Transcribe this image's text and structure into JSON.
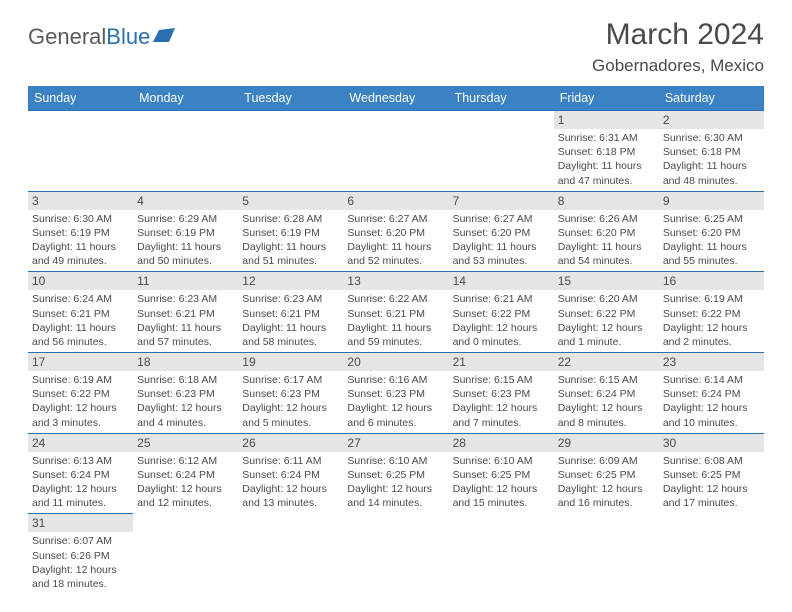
{
  "logo": {
    "text1": "General",
    "text2": "Blue"
  },
  "title": "March 2024",
  "location": "Gobernadores, Mexico",
  "colors": {
    "header_bg": "#3b82c4",
    "header_fg": "#ffffff",
    "daynum_bg": "#e5e5e5",
    "rule": "#2a6fb0",
    "text": "#4a4a4a",
    "brand_blue": "#2a6fb0"
  },
  "weekdays": [
    "Sunday",
    "Monday",
    "Tuesday",
    "Wednesday",
    "Thursday",
    "Friday",
    "Saturday"
  ],
  "grid": [
    [
      {
        "n": "",
        "t": ""
      },
      {
        "n": "",
        "t": ""
      },
      {
        "n": "",
        "t": ""
      },
      {
        "n": "",
        "t": ""
      },
      {
        "n": "",
        "t": ""
      },
      {
        "n": "1",
        "t": "Sunrise: 6:31 AM\nSunset: 6:18 PM\nDaylight: 11 hours and 47 minutes."
      },
      {
        "n": "2",
        "t": "Sunrise: 6:30 AM\nSunset: 6:18 PM\nDaylight: 11 hours and 48 minutes."
      }
    ],
    [
      {
        "n": "3",
        "t": "Sunrise: 6:30 AM\nSunset: 6:19 PM\nDaylight: 11 hours and 49 minutes."
      },
      {
        "n": "4",
        "t": "Sunrise: 6:29 AM\nSunset: 6:19 PM\nDaylight: 11 hours and 50 minutes."
      },
      {
        "n": "5",
        "t": "Sunrise: 6:28 AM\nSunset: 6:19 PM\nDaylight: 11 hours and 51 minutes."
      },
      {
        "n": "6",
        "t": "Sunrise: 6:27 AM\nSunset: 6:20 PM\nDaylight: 11 hours and 52 minutes."
      },
      {
        "n": "7",
        "t": "Sunrise: 6:27 AM\nSunset: 6:20 PM\nDaylight: 11 hours and 53 minutes."
      },
      {
        "n": "8",
        "t": "Sunrise: 6:26 AM\nSunset: 6:20 PM\nDaylight: 11 hours and 54 minutes."
      },
      {
        "n": "9",
        "t": "Sunrise: 6:25 AM\nSunset: 6:20 PM\nDaylight: 11 hours and 55 minutes."
      }
    ],
    [
      {
        "n": "10",
        "t": "Sunrise: 6:24 AM\nSunset: 6:21 PM\nDaylight: 11 hours and 56 minutes."
      },
      {
        "n": "11",
        "t": "Sunrise: 6:23 AM\nSunset: 6:21 PM\nDaylight: 11 hours and 57 minutes."
      },
      {
        "n": "12",
        "t": "Sunrise: 6:23 AM\nSunset: 6:21 PM\nDaylight: 11 hours and 58 minutes."
      },
      {
        "n": "13",
        "t": "Sunrise: 6:22 AM\nSunset: 6:21 PM\nDaylight: 11 hours and 59 minutes."
      },
      {
        "n": "14",
        "t": "Sunrise: 6:21 AM\nSunset: 6:22 PM\nDaylight: 12 hours and 0 minutes."
      },
      {
        "n": "15",
        "t": "Sunrise: 6:20 AM\nSunset: 6:22 PM\nDaylight: 12 hours and 1 minute."
      },
      {
        "n": "16",
        "t": "Sunrise: 6:19 AM\nSunset: 6:22 PM\nDaylight: 12 hours and 2 minutes."
      }
    ],
    [
      {
        "n": "17",
        "t": "Sunrise: 6:19 AM\nSunset: 6:22 PM\nDaylight: 12 hours and 3 minutes."
      },
      {
        "n": "18",
        "t": "Sunrise: 6:18 AM\nSunset: 6:23 PM\nDaylight: 12 hours and 4 minutes."
      },
      {
        "n": "19",
        "t": "Sunrise: 6:17 AM\nSunset: 6:23 PM\nDaylight: 12 hours and 5 minutes."
      },
      {
        "n": "20",
        "t": "Sunrise: 6:16 AM\nSunset: 6:23 PM\nDaylight: 12 hours and 6 minutes."
      },
      {
        "n": "21",
        "t": "Sunrise: 6:15 AM\nSunset: 6:23 PM\nDaylight: 12 hours and 7 minutes."
      },
      {
        "n": "22",
        "t": "Sunrise: 6:15 AM\nSunset: 6:24 PM\nDaylight: 12 hours and 8 minutes."
      },
      {
        "n": "23",
        "t": "Sunrise: 6:14 AM\nSunset: 6:24 PM\nDaylight: 12 hours and 10 minutes."
      }
    ],
    [
      {
        "n": "24",
        "t": "Sunrise: 6:13 AM\nSunset: 6:24 PM\nDaylight: 12 hours and 11 minutes."
      },
      {
        "n": "25",
        "t": "Sunrise: 6:12 AM\nSunset: 6:24 PM\nDaylight: 12 hours and 12 minutes."
      },
      {
        "n": "26",
        "t": "Sunrise: 6:11 AM\nSunset: 6:24 PM\nDaylight: 12 hours and 13 minutes."
      },
      {
        "n": "27",
        "t": "Sunrise: 6:10 AM\nSunset: 6:25 PM\nDaylight: 12 hours and 14 minutes."
      },
      {
        "n": "28",
        "t": "Sunrise: 6:10 AM\nSunset: 6:25 PM\nDaylight: 12 hours and 15 minutes."
      },
      {
        "n": "29",
        "t": "Sunrise: 6:09 AM\nSunset: 6:25 PM\nDaylight: 12 hours and 16 minutes."
      },
      {
        "n": "30",
        "t": "Sunrise: 6:08 AM\nSunset: 6:25 PM\nDaylight: 12 hours and 17 minutes."
      }
    ],
    [
      {
        "n": "31",
        "t": "Sunrise: 6:07 AM\nSunset: 6:26 PM\nDaylight: 12 hours and 18 minutes."
      },
      {
        "n": "",
        "t": ""
      },
      {
        "n": "",
        "t": ""
      },
      {
        "n": "",
        "t": ""
      },
      {
        "n": "",
        "t": ""
      },
      {
        "n": "",
        "t": ""
      },
      {
        "n": "",
        "t": ""
      }
    ]
  ]
}
